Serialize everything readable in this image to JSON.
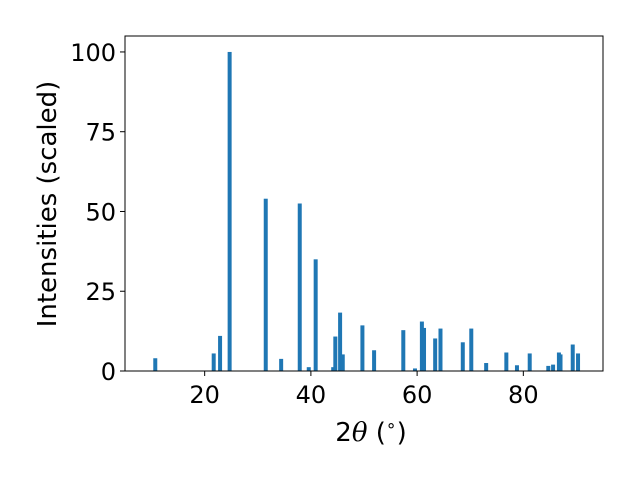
{
  "chart_data": {
    "type": "bar",
    "title": "",
    "xlabel_parts": {
      "prefix": "2",
      "symbol": "θ",
      "suffix": " (",
      "degree": "∘",
      "close": ")"
    },
    "ylabel": "Intensities (scaled)",
    "xlim": [
      5,
      95
    ],
    "ylim": [
      0,
      105
    ],
    "xticks": [
      20,
      40,
      60,
      80
    ],
    "yticks": [
      0,
      25,
      50,
      75,
      100
    ],
    "grid": false,
    "bar_color": "#1f77b4",
    "x": [
      10.7,
      21.7,
      22.9,
      24.7,
      31.5,
      34.4,
      37.9,
      39.6,
      40.9,
      44.2,
      44.6,
      45.5,
      46.0,
      49.7,
      51.9,
      57.4,
      59.6,
      60.9,
      61.3,
      63.4,
      64.4,
      68.6,
      70.2,
      73.0,
      76.8,
      78.8,
      81.2,
      84.7,
      85.6,
      86.7,
      87.0,
      89.3,
      90.3
    ],
    "y": [
      4.0,
      5.5,
      11.0,
      100.0,
      54.0,
      3.8,
      52.5,
      1.2,
      35.0,
      1.2,
      10.8,
      18.3,
      5.2,
      14.3,
      6.5,
      12.8,
      0.8,
      15.5,
      13.5,
      10.2,
      13.3,
      9.0,
      13.3,
      2.5,
      5.8,
      1.8,
      5.5,
      1.6,
      2.0,
      5.8,
      5.2,
      8.3,
      5.5
    ]
  }
}
